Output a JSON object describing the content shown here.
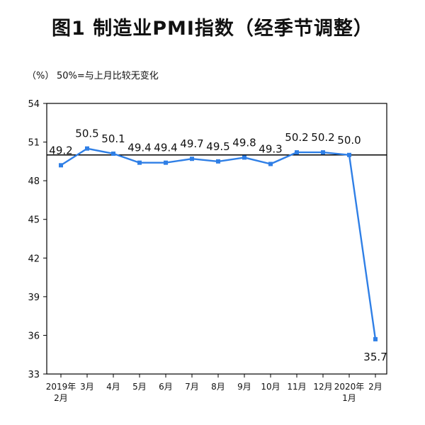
{
  "title": "图1 制造业PMI指数（经季节调整）",
  "unit_label": "（%）",
  "reference_note": "50%=与上月比较无变化",
  "colors": {
    "line": "#2f7fe6",
    "axis": "#000000"
  },
  "chart_data": {
    "type": "line",
    "title": "图1 制造业PMI指数（经季节调整）",
    "ylabel": "（%）",
    "xlabel": "",
    "ylim": [
      33,
      54
    ],
    "yticks": [
      33,
      36,
      39,
      42,
      45,
      48,
      51,
      54
    ],
    "reference_line": 50,
    "grid": false,
    "categories": [
      [
        "2019年",
        "2月"
      ],
      [
        "3月"
      ],
      [
        "4月"
      ],
      [
        "5月"
      ],
      [
        "6月"
      ],
      [
        "7月"
      ],
      [
        "8月"
      ],
      [
        "9月"
      ],
      [
        "10月"
      ],
      [
        "11月"
      ],
      [
        "12月"
      ],
      [
        "2020年",
        "1月"
      ],
      [
        "2月"
      ]
    ],
    "series": [
      {
        "values": [
          49.2,
          50.5,
          50.1,
          49.4,
          49.4,
          49.7,
          49.5,
          49.8,
          49.3,
          50.2,
          50.2,
          50.0,
          35.7
        ]
      }
    ],
    "data_labels": [
      "49.2",
      "50.5",
      "50.1",
      "49.4",
      "49.4",
      "49.7",
      "49.5",
      "49.8",
      "49.3",
      "50.2",
      "50.2",
      "50.0",
      "35.7"
    ]
  }
}
